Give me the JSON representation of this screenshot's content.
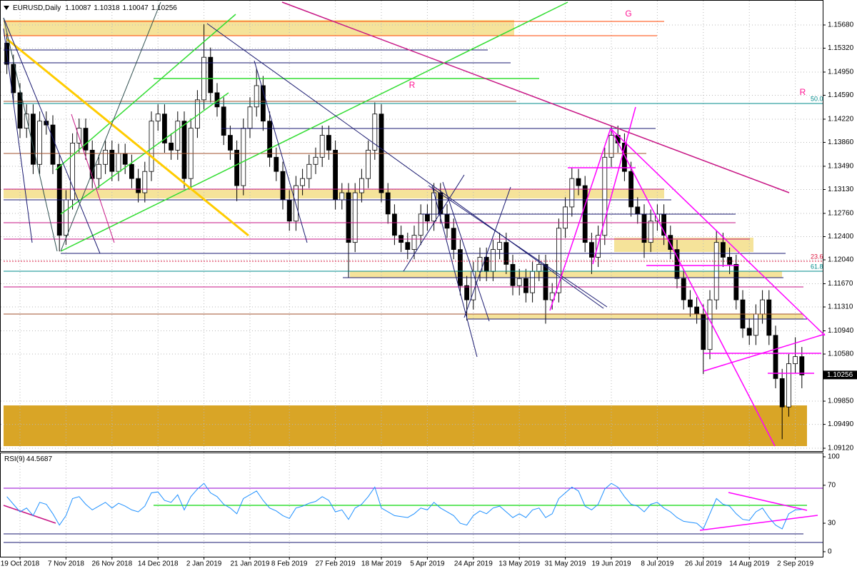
{
  "chart_data": [
    {
      "type": "candlestick",
      "title": "EURUSD,Daily",
      "last_bar": {
        "open": 1.10087,
        "high": 1.10318,
        "low": 1.10047,
        "close": 1.10256
      },
      "categories": [
        null,
        null,
        "19 Oct 2018",
        null,
        null,
        null,
        null,
        null,
        null,
        "7 Nov 2018",
        null,
        null,
        null,
        null,
        null,
        null,
        "26 Nov 2018",
        null,
        null,
        null,
        null,
        null,
        null,
        "14 Dec 2018",
        null,
        null,
        null,
        null,
        null,
        null,
        "2 Jan 2019",
        null,
        null,
        null,
        null,
        null,
        null,
        "21 Jan 2019",
        null,
        null,
        null,
        null,
        null,
        "8 Feb 2019",
        null,
        null,
        null,
        null,
        null,
        null,
        "27 Feb 2019",
        null,
        null,
        null,
        null,
        null,
        null,
        "18 Mar 2019",
        null,
        null,
        null,
        null,
        null,
        null,
        "5 Apr 2019",
        null,
        null,
        null,
        null,
        null,
        null,
        "24 Apr 2019",
        null,
        null,
        null,
        null,
        null,
        null,
        "13 May 2019",
        null,
        null,
        null,
        null,
        null,
        null,
        "31 May 2019",
        null,
        null,
        null,
        null,
        null,
        null,
        "19 Jun 2019",
        null,
        null,
        null,
        null,
        null,
        null,
        "8 Jul 2019",
        null,
        null,
        null,
        null,
        null,
        null,
        "26 Jul 2019",
        null,
        null,
        null,
        null,
        null,
        null,
        "14 Aug 2019",
        null,
        null,
        null,
        null,
        null,
        null,
        "2 Sep 2019",
        null
      ],
      "open": [
        1.154,
        1.1507,
        1.1463,
        1.1408,
        1.143,
        1.1352,
        1.1419,
        1.1413,
        1.1352,
        1.1242,
        1.1297,
        1.1385,
        1.1408,
        1.1374,
        1.133,
        1.1352,
        1.1374,
        1.1341,
        1.1369,
        1.1352,
        1.133,
        1.1308,
        1.1341,
        1.1419,
        1.143,
        1.1385,
        1.1374,
        1.1419,
        1.133,
        1.1408,
        1.1452,
        1.1518,
        1.1463,
        1.1441,
        1.1397,
        1.1374,
        1.1319,
        1.1408,
        1.1441,
        1.1474,
        1.1419,
        1.1363,
        1.1341,
        1.1297,
        1.1264,
        1.1319,
        1.133,
        1.1352,
        1.1363,
        1.1397,
        1.1374,
        1.1297,
        1.1308,
        1.1231,
        1.1308,
        1.133,
        1.1374,
        1.143,
        1.1308,
        1.1275,
        1.1242,
        1.1231,
        1.122,
        1.1242,
        1.1275,
        1.1264,
        1.1308,
        1.1275,
        1.1253,
        1.122,
        1.1164,
        1.1142,
        1.1186,
        1.1208,
        1.1186,
        1.122,
        1.1231,
        1.1197,
        1.1164,
        1.1175,
        1.1153,
        1.1186,
        1.1197,
        1.1142,
        1.1153,
        1.1253,
        1.1286,
        1.133,
        1.1319,
        1.1231,
        1.1208,
        1.1242,
        1.1363,
        1.1397,
        1.1385,
        1.1341,
        1.1286,
        1.1275,
        1.1231,
        1.1264,
        1.1275,
        1.1242,
        1.122,
        1.1175,
        1.1142,
        1.1131,
        1.112,
        1.1065,
        1.1142,
        1.1231,
        1.1208,
        1.1197,
        1.1142,
        1.1098,
        1.1087,
        1.112,
        1.1142,
        1.1087,
        1.102,
        1.0976,
        1.1043,
        1.1054
      ],
      "high": [
        1.1555,
        1.1522,
        1.1478,
        1.1445,
        1.1445,
        1.1434,
        1.1434,
        1.1428,
        1.1367,
        1.1312,
        1.14,
        1.1423,
        1.1423,
        1.1389,
        1.1367,
        1.1389,
        1.1389,
        1.1384,
        1.1384,
        1.1367,
        1.1345,
        1.1356,
        1.1434,
        1.1445,
        1.1445,
        1.14,
        1.1434,
        1.1434,
        1.1423,
        1.1467,
        1.1569,
        1.1533,
        1.1478,
        1.1456,
        1.1412,
        1.1389,
        1.1423,
        1.1456,
        1.15,
        1.1489,
        1.1434,
        1.1378,
        1.1356,
        1.1312,
        1.1334,
        1.1345,
        1.1367,
        1.1378,
        1.1412,
        1.1412,
        1.1389,
        1.1323,
        1.1323,
        1.1323,
        1.1345,
        1.1389,
        1.1448,
        1.1445,
        1.1323,
        1.129,
        1.1257,
        1.1246,
        1.1257,
        1.129,
        1.129,
        1.1323,
        1.1323,
        1.129,
        1.1268,
        1.1235,
        1.1179,
        1.1201,
        1.1223,
        1.1223,
        1.1235,
        1.1246,
        1.1246,
        1.1212,
        1.119,
        1.119,
        1.1201,
        1.1212,
        1.1212,
        1.1168,
        1.1268,
        1.1301,
        1.1347,
        1.1345,
        1.1334,
        1.1246,
        1.1257,
        1.1378,
        1.1412,
        1.1412,
        1.14,
        1.1356,
        1.1301,
        1.129,
        1.1282,
        1.129,
        1.129,
        1.1257,
        1.1235,
        1.119,
        1.1157,
        1.1146,
        1.1135,
        1.1157,
        1.125,
        1.1246,
        1.1223,
        1.1212,
        1.1157,
        1.1113,
        1.1135,
        1.1157,
        1.1157,
        1.1102,
        1.1035,
        1.1058,
        1.1084,
        1.1069
      ],
      "low": [
        1.1492,
        1.1448,
        1.1393,
        1.1393,
        1.1337,
        1.1337,
        1.1398,
        1.1337,
        1.1217,
        1.1227,
        1.1282,
        1.137,
        1.1359,
        1.1315,
        1.1315,
        1.1337,
        1.1326,
        1.1326,
        1.1337,
        1.1315,
        1.1293,
        1.1293,
        1.1326,
        1.1404,
        1.137,
        1.1359,
        1.1359,
        1.1315,
        1.1315,
        1.1393,
        1.1437,
        1.1448,
        1.1426,
        1.1382,
        1.1359,
        1.1295,
        1.1304,
        1.1393,
        1.1426,
        1.1404,
        1.1348,
        1.1326,
        1.1282,
        1.1249,
        1.1249,
        1.1304,
        1.1315,
        1.1337,
        1.1348,
        1.1359,
        1.1282,
        1.1282,
        1.1177,
        1.1216,
        1.1293,
        1.1315,
        1.1359,
        1.1293,
        1.126,
        1.1227,
        1.1216,
        1.1205,
        1.1205,
        1.1227,
        1.1249,
        1.1249,
        1.126,
        1.1238,
        1.1205,
        1.1149,
        1.111,
        1.1127,
        1.1171,
        1.1171,
        1.1171,
        1.1205,
        1.1182,
        1.1149,
        1.1149,
        1.1138,
        1.1138,
        1.1171,
        1.1105,
        1.1127,
        1.1138,
        1.1238,
        1.1271,
        1.1304,
        1.1216,
        1.1182,
        1.1193,
        1.1227,
        1.1348,
        1.137,
        1.1326,
        1.1271,
        1.126,
        1.1207,
        1.1216,
        1.1249,
        1.1227,
        1.1205,
        1.116,
        1.1127,
        1.1116,
        1.1105,
        1.1027,
        1.105,
        1.1127,
        1.1193,
        1.1182,
        1.1127,
        1.1083,
        1.1072,
        1.1072,
        1.1105,
        1.1072,
        1.1005,
        1.0926,
        1.0961,
        1.1028,
        1.1005
      ],
      "close": [
        1.1507,
        1.1463,
        1.1408,
        1.143,
        1.1352,
        1.1419,
        1.1413,
        1.1352,
        1.1242,
        1.1297,
        1.1385,
        1.1408,
        1.1374,
        1.133,
        1.1352,
        1.1374,
        1.1341,
        1.1369,
        1.1352,
        1.133,
        1.1308,
        1.1341,
        1.1419,
        1.143,
        1.1385,
        1.1374,
        1.1419,
        1.133,
        1.1408,
        1.1452,
        1.1518,
        1.1463,
        1.1441,
        1.1397,
        1.1374,
        1.1319,
        1.1408,
        1.1441,
        1.1474,
        1.1419,
        1.1363,
        1.1341,
        1.1297,
        1.1264,
        1.1319,
        1.133,
        1.1352,
        1.1363,
        1.1397,
        1.1374,
        1.1297,
        1.1308,
        1.1231,
        1.1308,
        1.133,
        1.1374,
        1.143,
        1.1308,
        1.1275,
        1.1242,
        1.1231,
        1.122,
        1.1242,
        1.1275,
        1.1264,
        1.1308,
        1.1275,
        1.1253,
        1.122,
        1.1164,
        1.1142,
        1.1186,
        1.1208,
        1.1186,
        1.122,
        1.1231,
        1.1197,
        1.1164,
        1.1175,
        1.1153,
        1.1186,
        1.1197,
        1.1142,
        1.1153,
        1.1253,
        1.1286,
        1.133,
        1.1319,
        1.1231,
        1.1208,
        1.1242,
        1.1363,
        1.1397,
        1.1385,
        1.1341,
        1.1286,
        1.1275,
        1.1231,
        1.1264,
        1.1275,
        1.1242,
        1.122,
        1.1175,
        1.1142,
        1.1131,
        1.112,
        1.1065,
        1.1142,
        1.1231,
        1.1208,
        1.1197,
        1.1142,
        1.1098,
        1.1087,
        1.112,
        1.1142,
        1.1087,
        1.102,
        1.0976,
        1.1043,
        1.1054,
        1.10256
      ],
      "ylim": [
        1.09076,
        1.16067
      ],
      "yticks": [
        {
          "value": 1.1568,
          "label": "1.15680"
        },
        {
          "value": 1.1532,
          "label": "1.15320"
        },
        {
          "value": 1.1495,
          "label": "1.14950"
        },
        {
          "value": 1.1459,
          "label": "1.14590"
        },
        {
          "value": 1.1422,
          "label": "1.14220"
        },
        {
          "value": 1.1386,
          "label": "1.13860"
        },
        {
          "value": 1.1349,
          "label": "1.13490"
        },
        {
          "value": 1.1313,
          "label": "1.13130"
        },
        {
          "value": 1.1276,
          "label": "1.12760"
        },
        {
          "value": 1.124,
          "label": "1.12400"
        },
        {
          "value": 1.1204,
          "label": "1.12040"
        },
        {
          "value": 1.1167,
          "label": "1.11670"
        },
        {
          "value": 1.1131,
          "label": "1.11310"
        },
        {
          "value": 1.1094,
          "label": "1.10940"
        },
        {
          "value": 1.1058,
          "label": "1.10580"
        },
        {
          "value": 1.0985,
          "label": "1.09850"
        },
        {
          "value": 1.0949,
          "label": "1.09490"
        },
        {
          "value": 1.0912,
          "label": "1.09120"
        }
      ],
      "grid": true,
      "annotations": [
        "G",
        "R",
        "R"
      ],
      "fib_levels": [
        {
          "value": 50,
          "label": "50.0"
        },
        23.6,
        61.8
      ]
    },
    {
      "type": "line",
      "title": "RSI(9)",
      "color": "#1e90ff",
      "values": [
        58,
        50,
        42,
        46,
        38,
        52,
        50,
        40,
        28,
        38,
        56,
        58,
        50,
        44,
        48,
        52,
        46,
        51,
        48,
        44,
        42,
        48,
        62,
        63,
        54,
        52,
        60,
        44,
        58,
        66,
        72,
        62,
        58,
        50,
        46,
        40,
        56,
        60,
        64,
        54,
        46,
        43,
        38,
        35,
        46,
        48,
        51,
        53,
        58,
        54,
        42,
        44,
        34,
        46,
        50,
        58,
        68,
        46,
        42,
        38,
        37,
        36,
        40,
        46,
        44,
        52,
        46,
        42,
        38,
        30,
        28,
        38,
        43,
        40,
        46,
        48,
        42,
        36,
        40,
        36,
        44,
        46,
        36,
        40,
        56,
        62,
        68,
        64,
        48,
        44,
        50,
        66,
        72,
        68,
        58,
        50,
        48,
        42,
        50,
        52,
        46,
        42,
        36,
        32,
        31,
        30,
        24,
        40,
        56,
        50,
        48,
        40,
        34,
        33,
        42,
        46,
        36,
        28,
        24,
        40,
        44,
        44.5687
      ],
      "ylim": [
        -5.3,
        104.5
      ],
      "yticks": [
        0,
        30,
        70,
        100
      ]
    }
  ]
}
